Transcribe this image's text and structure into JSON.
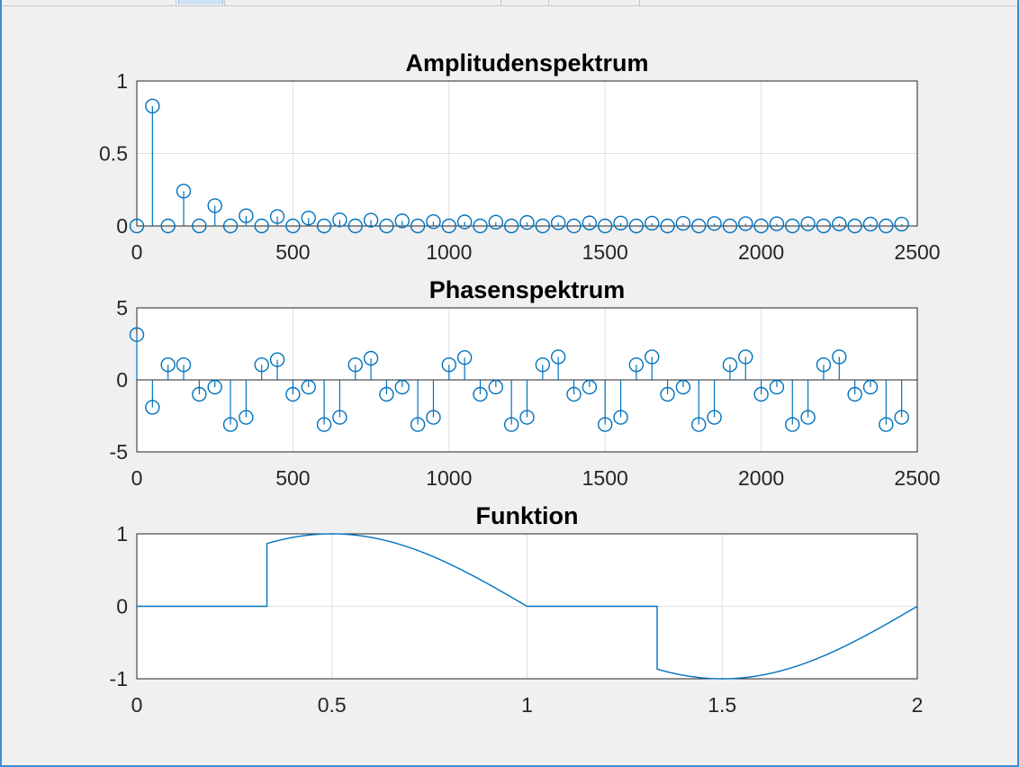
{
  "colors": {
    "series": "#0072bd",
    "axes": "#262626",
    "grid": "#dfdfdf",
    "background": "#f0f0f0"
  },
  "chart_data": [
    {
      "type": "stem",
      "title": "Amplitudenspektrum",
      "xlabel": "",
      "ylabel": "",
      "xlim": [
        0,
        2500
      ],
      "ylim": [
        0,
        1
      ],
      "xticks": [
        "0",
        "500",
        "1000",
        "1500",
        "2000",
        "2500"
      ],
      "yticks": [
        "0",
        "0.5",
        "1"
      ],
      "grid": true,
      "x": [
        0,
        50,
        100,
        150,
        200,
        250,
        300,
        350,
        400,
        450,
        500,
        550,
        600,
        650,
        700,
        750,
        800,
        850,
        900,
        950,
        1000,
        1050,
        1100,
        1150,
        1200,
        1250,
        1300,
        1350,
        1400,
        1450,
        1500,
        1550,
        1600,
        1650,
        1700,
        1750,
        1800,
        1850,
        1900,
        1950,
        2000,
        2050,
        2100,
        2150,
        2200,
        2250,
        2300,
        2350,
        2400,
        2450
      ],
      "y": [
        0,
        0.827,
        0,
        0.24,
        0,
        0.14,
        0,
        0.07,
        0,
        0.065,
        0,
        0.055,
        0,
        0.042,
        0,
        0.04,
        0,
        0.035,
        0,
        0.03,
        0,
        0.028,
        0,
        0.026,
        0,
        0.024,
        0,
        0.022,
        0,
        0.021,
        0,
        0.02,
        0,
        0.019,
        0,
        0.018,
        0,
        0.017,
        0,
        0.016,
        0,
        0.015,
        0,
        0.015,
        0,
        0.014,
        0,
        0.013,
        0,
        0.013
      ]
    },
    {
      "type": "stem",
      "title": "Phasenspektrum",
      "xlabel": "",
      "ylabel": "",
      "xlim": [
        0,
        2500
      ],
      "ylim": [
        -5,
        5
      ],
      "xticks": [
        "0",
        "500",
        "1000",
        "1500",
        "2000",
        "2500"
      ],
      "yticks": [
        "-5",
        "0",
        "5"
      ],
      "grid": true,
      "x": [
        0,
        50,
        100,
        150,
        200,
        250,
        300,
        350,
        400,
        450,
        500,
        550,
        600,
        650,
        700,
        750,
        800,
        850,
        900,
        950,
        1000,
        1050,
        1100,
        1150,
        1200,
        1250,
        1300,
        1350,
        1400,
        1450,
        1500,
        1550,
        1600,
        1650,
        1700,
        1750,
        1800,
        1850,
        1900,
        1950,
        2000,
        2050,
        2100,
        2150,
        2200,
        2250,
        2300,
        2350,
        2400,
        2450
      ],
      "y": [
        3.14,
        -1.9,
        1.05,
        1.05,
        -1.0,
        -0.5,
        -3.1,
        -2.6,
        1.05,
        1.4,
        -1.0,
        -0.5,
        -3.1,
        -2.6,
        1.05,
        1.5,
        -1.0,
        -0.5,
        -3.1,
        -2.6,
        1.05,
        1.55,
        -1.0,
        -0.5,
        -3.1,
        -2.6,
        1.05,
        1.6,
        -1.0,
        -0.5,
        -3.1,
        -2.6,
        1.05,
        1.6,
        -1.0,
        -0.5,
        -3.1,
        -2.6,
        1.05,
        1.6,
        -1.0,
        -0.5,
        -3.1,
        -2.6,
        1.05,
        1.6,
        -1.0,
        -0.5,
        -3.1,
        -2.6
      ]
    },
    {
      "type": "line",
      "title": "Funktion",
      "xlabel": "",
      "ylabel": "",
      "xlim": [
        0,
        2
      ],
      "ylim": [
        -1,
        1
      ],
      "xticks": [
        "0",
        "0.5",
        "1",
        "1.5",
        "2"
      ],
      "yticks": [
        "-1",
        "0",
        "1"
      ],
      "grid": true,
      "function": "y = sin(pi*x) for 1/3<=x<1 and 4/3<=x<2, else 0"
    }
  ]
}
